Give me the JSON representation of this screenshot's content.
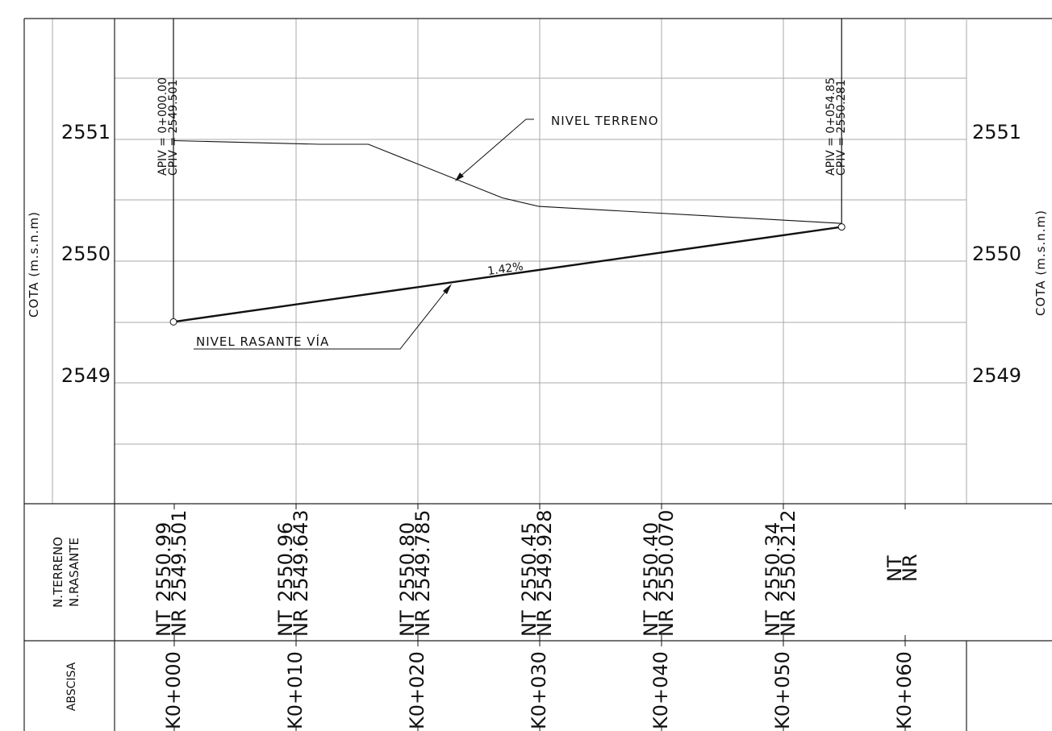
{
  "axis": {
    "label_left": "COTA (m.s.n.m)",
    "label_right": "COTA (m.s.n.m)",
    "ticks": [
      "2551",
      "2550",
      "2549"
    ]
  },
  "chart_data": {
    "type": "line",
    "x_unit": "station (m)",
    "y_unit": "m.s.n.m",
    "xlim": [
      -5,
      65
    ],
    "ylim": [
      2548.3,
      2551.5
    ],
    "series": [
      {
        "name": "NIVEL TERRENO",
        "points": [
          [
            0,
            2550.99
          ],
          [
            12,
            2550.96
          ],
          [
            16,
            2550.96
          ],
          [
            27,
            2550.52
          ],
          [
            30,
            2550.45
          ],
          [
            54.85,
            2550.31
          ]
        ]
      },
      {
        "name": "NIVEL RASANTE VÍA",
        "points": [
          [
            0,
            2549.501
          ],
          [
            54.85,
            2550.281
          ]
        ]
      }
    ],
    "pivots": [
      {
        "apiv_label": "APIV = 0+000.00",
        "cpiv_label": "CPIV = 2549.501",
        "station": 0,
        "elevation": 2549.501
      },
      {
        "apiv_label": "APIV = 0+054.85",
        "cpiv_label": "CPIV = 2550.281",
        "station": 54.85,
        "elevation": 2550.281
      }
    ],
    "grade_label": "1.42%",
    "annotations": {
      "terrain": "NIVEL TERRENO",
      "grade_line": "NIVEL RASANTE VÍA"
    }
  },
  "table": {
    "row_labels": {
      "levels_line1": "N.TERRENO",
      "levels_line2": "N.RASANTE",
      "abscissa": "ABSCISA"
    },
    "nt_code": "NT",
    "nr_code": "NR",
    "stations": [
      {
        "abscisa": "K0+000",
        "nt": "2550.99",
        "nr": "2549.501"
      },
      {
        "abscisa": "K0+010",
        "nt": "2550.96",
        "nr": "2549.643"
      },
      {
        "abscisa": "K0+020",
        "nt": "2550.80",
        "nr": "2549.785"
      },
      {
        "abscisa": "K0+030",
        "nt": "2550.45",
        "nr": "2549.928"
      },
      {
        "abscisa": "K0+040",
        "nt": "2550.40",
        "nr": "2550.070"
      },
      {
        "abscisa": "K0+050",
        "nt": "2550.34",
        "nr": "2550.212"
      },
      {
        "abscisa": "K0+060",
        "nt": "",
        "nr": ""
      }
    ]
  }
}
